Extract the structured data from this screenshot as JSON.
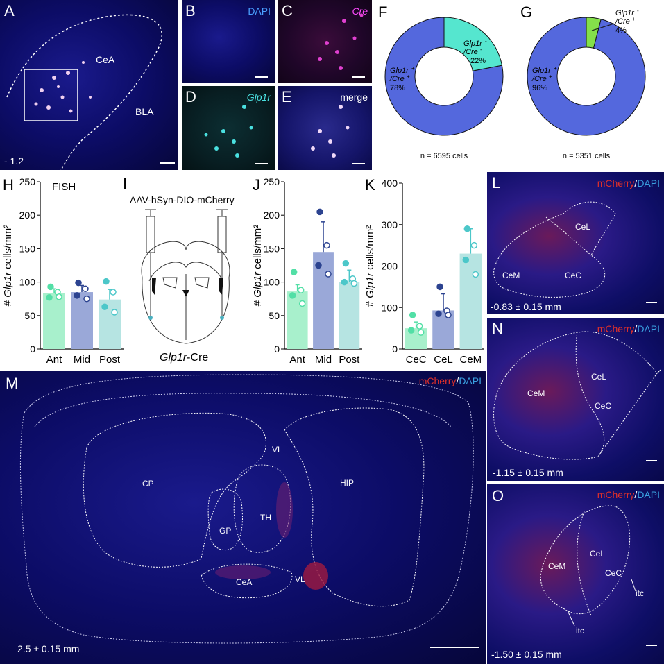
{
  "panels": {
    "A": {
      "letter": "A",
      "regions": [
        "CeA",
        "BLA"
      ],
      "coordinate": "- 1.2"
    },
    "B": {
      "letter": "B",
      "channel": "DAPI"
    },
    "C": {
      "letter": "C",
      "channel": "Cre"
    },
    "D": {
      "letter": "D",
      "channel": "Glp1r"
    },
    "E": {
      "letter": "E",
      "channel": "merge"
    },
    "H": {
      "letter": "H",
      "note": "FISH"
    },
    "I": {
      "letter": "I",
      "virus": "AAV-hSyn-DIO-mCherry",
      "mouse_prefix": "Glp1r",
      "mouse_suffix": "-Cre"
    },
    "L": {
      "letter": "L",
      "stain_red": "mCherry",
      "stain_sep": "/",
      "stain_blue": "DAPI",
      "regions": [
        "CeL",
        "CeM",
        "CeC"
      ],
      "coordinate": "-0.83 ± 0.15 mm"
    },
    "M": {
      "letter": "M",
      "stain_red": "mCherry",
      "stain_sep": "/",
      "stain_blue": "DAPI",
      "regions": [
        "CP",
        "VL",
        "HIP",
        "TH",
        "GP",
        "CeA",
        "VL"
      ],
      "coordinate": "2.5 ± 0.15 mm"
    },
    "N": {
      "letter": "N",
      "stain_red": "mCherry",
      "stain_sep": "/",
      "stain_blue": "DAPI",
      "regions": [
        "CeL",
        "CeM",
        "CeC"
      ],
      "coordinate": "-1.15 ± 0.15 mm"
    },
    "O": {
      "letter": "O",
      "stain_red": "mCherry",
      "stain_sep": "/",
      "stain_blue": "DAPI",
      "regions": [
        "CeL",
        "CeM",
        "CeC",
        "itc",
        "itc"
      ],
      "coordinate": "-1.50 ± 0.15 mm"
    }
  },
  "chart_data": [
    {
      "panel": "F",
      "type": "pie",
      "title": "",
      "n_label": "n = 6595 cells",
      "slices": [
        {
          "label_main": "Glp1r",
          "label_sup": "+",
          "label_line2": "/Cre",
          "label_sup2": "+",
          "pct_label": "78%",
          "value": 78,
          "color": "#5468dd"
        },
        {
          "label_main": "Glp1r",
          "label_sup": "-",
          "label_line2": "/Cre",
          "label_sup2": "-",
          "pct_label": "22%",
          "value": 22,
          "color": "#55e6cf"
        }
      ]
    },
    {
      "panel": "G",
      "type": "pie",
      "title": "",
      "n_label": "n = 5351 cells",
      "slices": [
        {
          "label_main": "Glp1r",
          "label_sup": "+",
          "label_line2": "/Cre",
          "label_sup2": "+",
          "pct_label": "96%",
          "value": 96,
          "color": "#5468dd"
        },
        {
          "label_main": "Glp1r",
          "label_sup": "-",
          "label_line2": "/Cre",
          "label_sup2": "+",
          "pct_label": "4%",
          "value": 4,
          "color": "#84e04a"
        }
      ]
    },
    {
      "panel": "H",
      "type": "bar",
      "categories": [
        "Ant",
        "Mid",
        "Post"
      ],
      "values": [
        84,
        85,
        74
      ],
      "errors": [
        6,
        10,
        15
      ],
      "points": [
        [
          93,
          85,
          77,
          78
        ],
        [
          99,
          90,
          80,
          75
        ],
        [
          101,
          85,
          63,
          55
        ]
      ],
      "colors": [
        "#a8f0cc",
        "#9aa8d8",
        "#b6e4e2"
      ],
      "point_colors": [
        "#52dfa6",
        "#2c4390",
        "#4cc7c9"
      ],
      "ylim": [
        0,
        250
      ],
      "yticks": [
        0,
        50,
        100,
        150,
        200,
        250
      ],
      "ylabel_prefix": "# ",
      "ylabel_italic": "Glp1r",
      "ylabel_suffix": " cells/mm²"
    },
    {
      "panel": "J",
      "type": "bar",
      "categories": [
        "Ant",
        "Mid",
        "Post"
      ],
      "values": [
        86,
        145,
        100
      ],
      "errors": [
        10,
        45,
        18
      ],
      "points": [
        [
          115,
          88,
          80,
          68
        ],
        [
          205,
          155,
          125,
          112
        ],
        [
          128,
          105,
          100,
          98
        ]
      ],
      "colors": [
        "#a8f0cc",
        "#9aa8d8",
        "#b6e4e2"
      ],
      "point_colors": [
        "#52dfa6",
        "#2c4390",
        "#4cc7c9"
      ],
      "ylim": [
        0,
        250
      ],
      "yticks": [
        0,
        50,
        100,
        150,
        200,
        250
      ],
      "ylabel_prefix": "# ",
      "ylabel_italic": "Glp1r",
      "ylabel_suffix": " cells/mm²"
    },
    {
      "panel": "K",
      "type": "bar",
      "categories": [
        "CeC",
        "CeL",
        "CeM"
      ],
      "values": [
        50,
        93,
        230
      ],
      "errors": [
        15,
        40,
        60
      ],
      "points": [
        [
          82,
          55,
          45,
          40
        ],
        [
          150,
          92,
          85,
          82
        ],
        [
          290,
          250,
          215,
          180
        ]
      ],
      "colors": [
        "#a8f0cc",
        "#9aa8d8",
        "#b6e4e2"
      ],
      "point_colors": [
        "#52dfa6",
        "#2c4390",
        "#4cc7c9"
      ],
      "ylim": [
        0,
        400
      ],
      "yticks": [
        0,
        100,
        200,
        300,
        400
      ],
      "ylabel_prefix": "# ",
      "ylabel_italic": "Glp1r",
      "ylabel_suffix": " cells/mm²"
    }
  ]
}
